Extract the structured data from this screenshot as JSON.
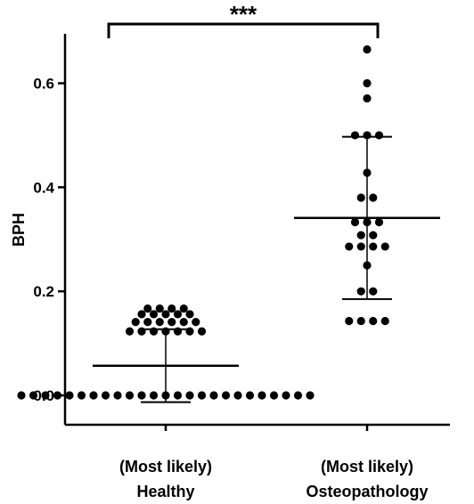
{
  "chart_data": {
    "type": "scatter",
    "ylabel": "BPH",
    "ylim": [
      -0.05,
      0.68
    ],
    "yticks": [
      "0.0",
      "0.2",
      "0.4",
      "0.6"
    ],
    "ytick_values": [
      0.0,
      0.2,
      0.4,
      0.6
    ],
    "significance_label": "***",
    "groups": [
      {
        "label_line1": "(Most likely)",
        "label_line2": "Healthy",
        "mean": 0.057,
        "sd_upper": 0.127,
        "sd_lower": -0.013,
        "points": [
          {
            "y": 0.0,
            "count": 25
          },
          {
            "y": 0.123,
            "count": 7
          },
          {
            "y": 0.141,
            "count": 6
          },
          {
            "y": 0.156,
            "count": 5
          },
          {
            "y": 0.167,
            "count": 4
          }
        ]
      },
      {
        "label_line1": "(Most likely)",
        "label_line2": "Osteopathology",
        "mean": 0.341,
        "sd_upper": 0.497,
        "sd_lower": 0.185,
        "points": [
          {
            "y": 0.665,
            "count": 1
          },
          {
            "y": 0.6,
            "count": 1
          },
          {
            "y": 0.571,
            "count": 1
          },
          {
            "y": 0.5,
            "count": 3
          },
          {
            "y": 0.428,
            "count": 1
          },
          {
            "y": 0.38,
            "count": 2
          },
          {
            "y": 0.333,
            "count": 3
          },
          {
            "y": 0.308,
            "count": 2
          },
          {
            "y": 0.286,
            "count": 4
          },
          {
            "y": 0.25,
            "count": 1
          },
          {
            "y": 0.2,
            "count": 2
          },
          {
            "y": 0.143,
            "count": 4
          }
        ]
      }
    ]
  }
}
